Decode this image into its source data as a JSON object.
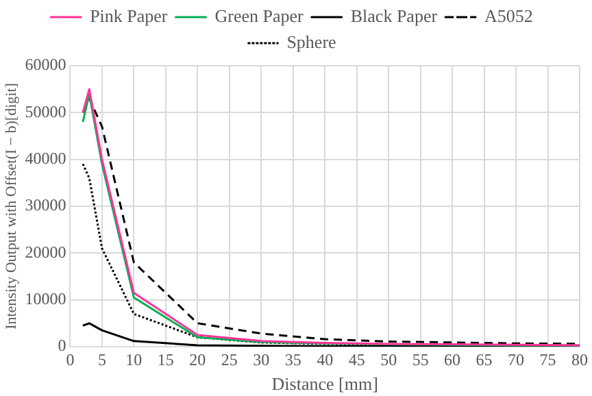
{
  "chart_data": {
    "type": "line",
    "xlabel": "Distance [mm]",
    "ylabel": "Intensity Output with Offset(I − b)[digit]",
    "xlim": [
      0,
      80
    ],
    "xticks": [
      0,
      5,
      10,
      15,
      20,
      25,
      30,
      35,
      40,
      45,
      50,
      55,
      60,
      65,
      70,
      75,
      80
    ],
    "ylim": [
      0,
      60000
    ],
    "yticks": [
      0,
      10000,
      20000,
      30000,
      40000,
      50000,
      60000
    ],
    "x": [
      2,
      3,
      5,
      10,
      20,
      30,
      40,
      50,
      60,
      70,
      80
    ],
    "series": [
      {
        "name": "Pink Paper",
        "color": "#ff3399",
        "line_style": "solid",
        "values": [
          50000,
          55000,
          40000,
          11500,
          2500,
          1200,
          800,
          600,
          500,
          400,
          300
        ]
      },
      {
        "name": "Green Paper",
        "color": "#00b050",
        "line_style": "solid",
        "values": [
          48000,
          54000,
          39000,
          10500,
          2000,
          1000,
          700,
          500,
          400,
          300,
          300
        ]
      },
      {
        "name": "Black Paper",
        "color": "#000000",
        "line_style": "solid",
        "values": [
          4500,
          5000,
          3500,
          1200,
          300,
          200,
          100,
          100,
          100,
          100,
          100
        ]
      },
      {
        "name": "A5052",
        "color": "#000000",
        "line_style": "dashed",
        "values": [
          50000,
          53000,
          47000,
          18000,
          5000,
          2800,
          1600,
          1100,
          900,
          700,
          600
        ]
      },
      {
        "name": "Sphere",
        "color": "#000000",
        "line_style": "dotted",
        "values": [
          39000,
          36000,
          21000,
          7000,
          2000,
          900,
          600,
          400,
          300,
          300,
          200
        ]
      }
    ],
    "grid": true,
    "legend": "top",
    "marker": "none"
  }
}
